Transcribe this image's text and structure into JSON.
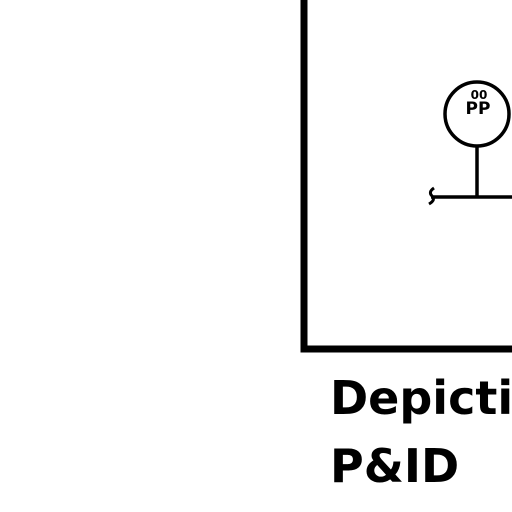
{
  "diagram": {
    "caption_line1": "Depictio",
    "caption_line2": "P&ID",
    "instrument": {
      "tag_top": "00",
      "tag_bottom": "PP"
    },
    "colors": {
      "ink": "#000000",
      "background": "#ffffff"
    }
  }
}
